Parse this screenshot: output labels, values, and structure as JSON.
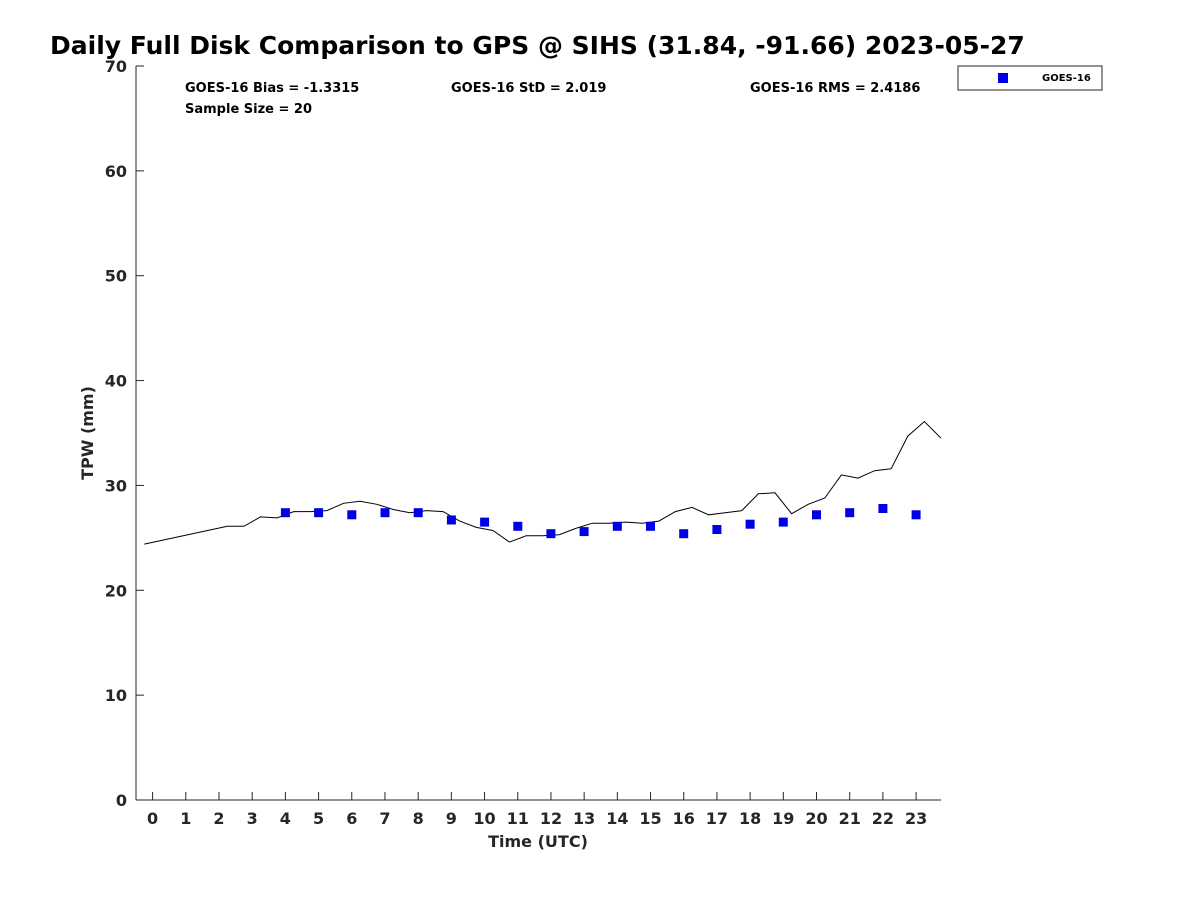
{
  "chart_data": {
    "type": "line",
    "title": "Daily Full Disk Comparison to GPS @ SIHS (31.84, -91.66) 2023-05-27",
    "xlabel": "Time (UTC)",
    "ylabel": "TPW (mm)",
    "xlim": [
      -0.5,
      23.75
    ],
    "ylim": [
      0,
      70
    ],
    "x_ticks": [
      "0",
      "1",
      "2",
      "3",
      "4",
      "5",
      "6",
      "7",
      "8",
      "9",
      "10",
      "11",
      "12",
      "13",
      "14",
      "15",
      "16",
      "17",
      "18",
      "19",
      "20",
      "21",
      "22",
      "23"
    ],
    "y_ticks": [
      "0",
      "10",
      "20",
      "30",
      "40",
      "50",
      "60",
      "70"
    ],
    "grid": false,
    "legend_position": "top-right, outside plot",
    "stats": {
      "bias": "GOES-16 Bias = -1.3315",
      "std": "GOES-16 StD = 2.019",
      "rms": "GOES-16 RMS = 2.4186",
      "sample": "Sample Size = 20"
    },
    "series": [
      {
        "kind": "line",
        "color": "#000000",
        "x": [
          -0.25,
          2.25,
          2.75,
          3.25,
          3.75,
          4.25,
          4.75,
          5.25,
          5.75,
          6.25,
          6.75,
          7.25,
          7.75,
          8.25,
          8.75,
          9.25,
          9.75,
          10.25,
          10.75,
          11.25,
          11.75,
          12.25,
          12.75,
          13.25,
          13.75,
          14.25,
          14.75,
          15.25,
          15.75,
          16.25,
          16.75,
          17.25,
          17.75,
          18.25,
          18.75,
          19.25,
          19.75,
          20.25,
          20.75,
          21.25,
          21.75,
          22.25,
          22.75,
          23.25,
          23.75
        ],
        "values": [
          24.4,
          26.1,
          26.1,
          27.0,
          26.9,
          27.5,
          27.5,
          27.6,
          28.3,
          28.5,
          28.2,
          27.7,
          27.4,
          27.6,
          27.5,
          26.6,
          26.0,
          25.7,
          24.6,
          25.2,
          25.2,
          25.3,
          25.9,
          26.4,
          26.4,
          26.5,
          26.4,
          26.6,
          27.5,
          27.9,
          27.2,
          27.4,
          27.6,
          29.2,
          29.3,
          27.3,
          28.2,
          28.8,
          31.0,
          30.7,
          31.4,
          31.6,
          34.7,
          36.1,
          34.5
        ]
      },
      {
        "name": "GOES-16",
        "kind": "scatter",
        "marker": "square",
        "color": "#0000e6",
        "x": [
          4,
          5,
          6,
          7,
          8,
          9,
          10,
          11,
          12,
          13,
          14,
          15,
          16,
          17,
          18,
          19,
          20,
          21,
          22,
          23
        ],
        "values": [
          27.4,
          27.4,
          27.2,
          27.4,
          27.4,
          26.7,
          26.5,
          26.1,
          25.4,
          25.6,
          26.1,
          26.1,
          25.4,
          25.8,
          26.3,
          26.5,
          27.2,
          27.4,
          27.8,
          27.2
        ]
      }
    ]
  }
}
